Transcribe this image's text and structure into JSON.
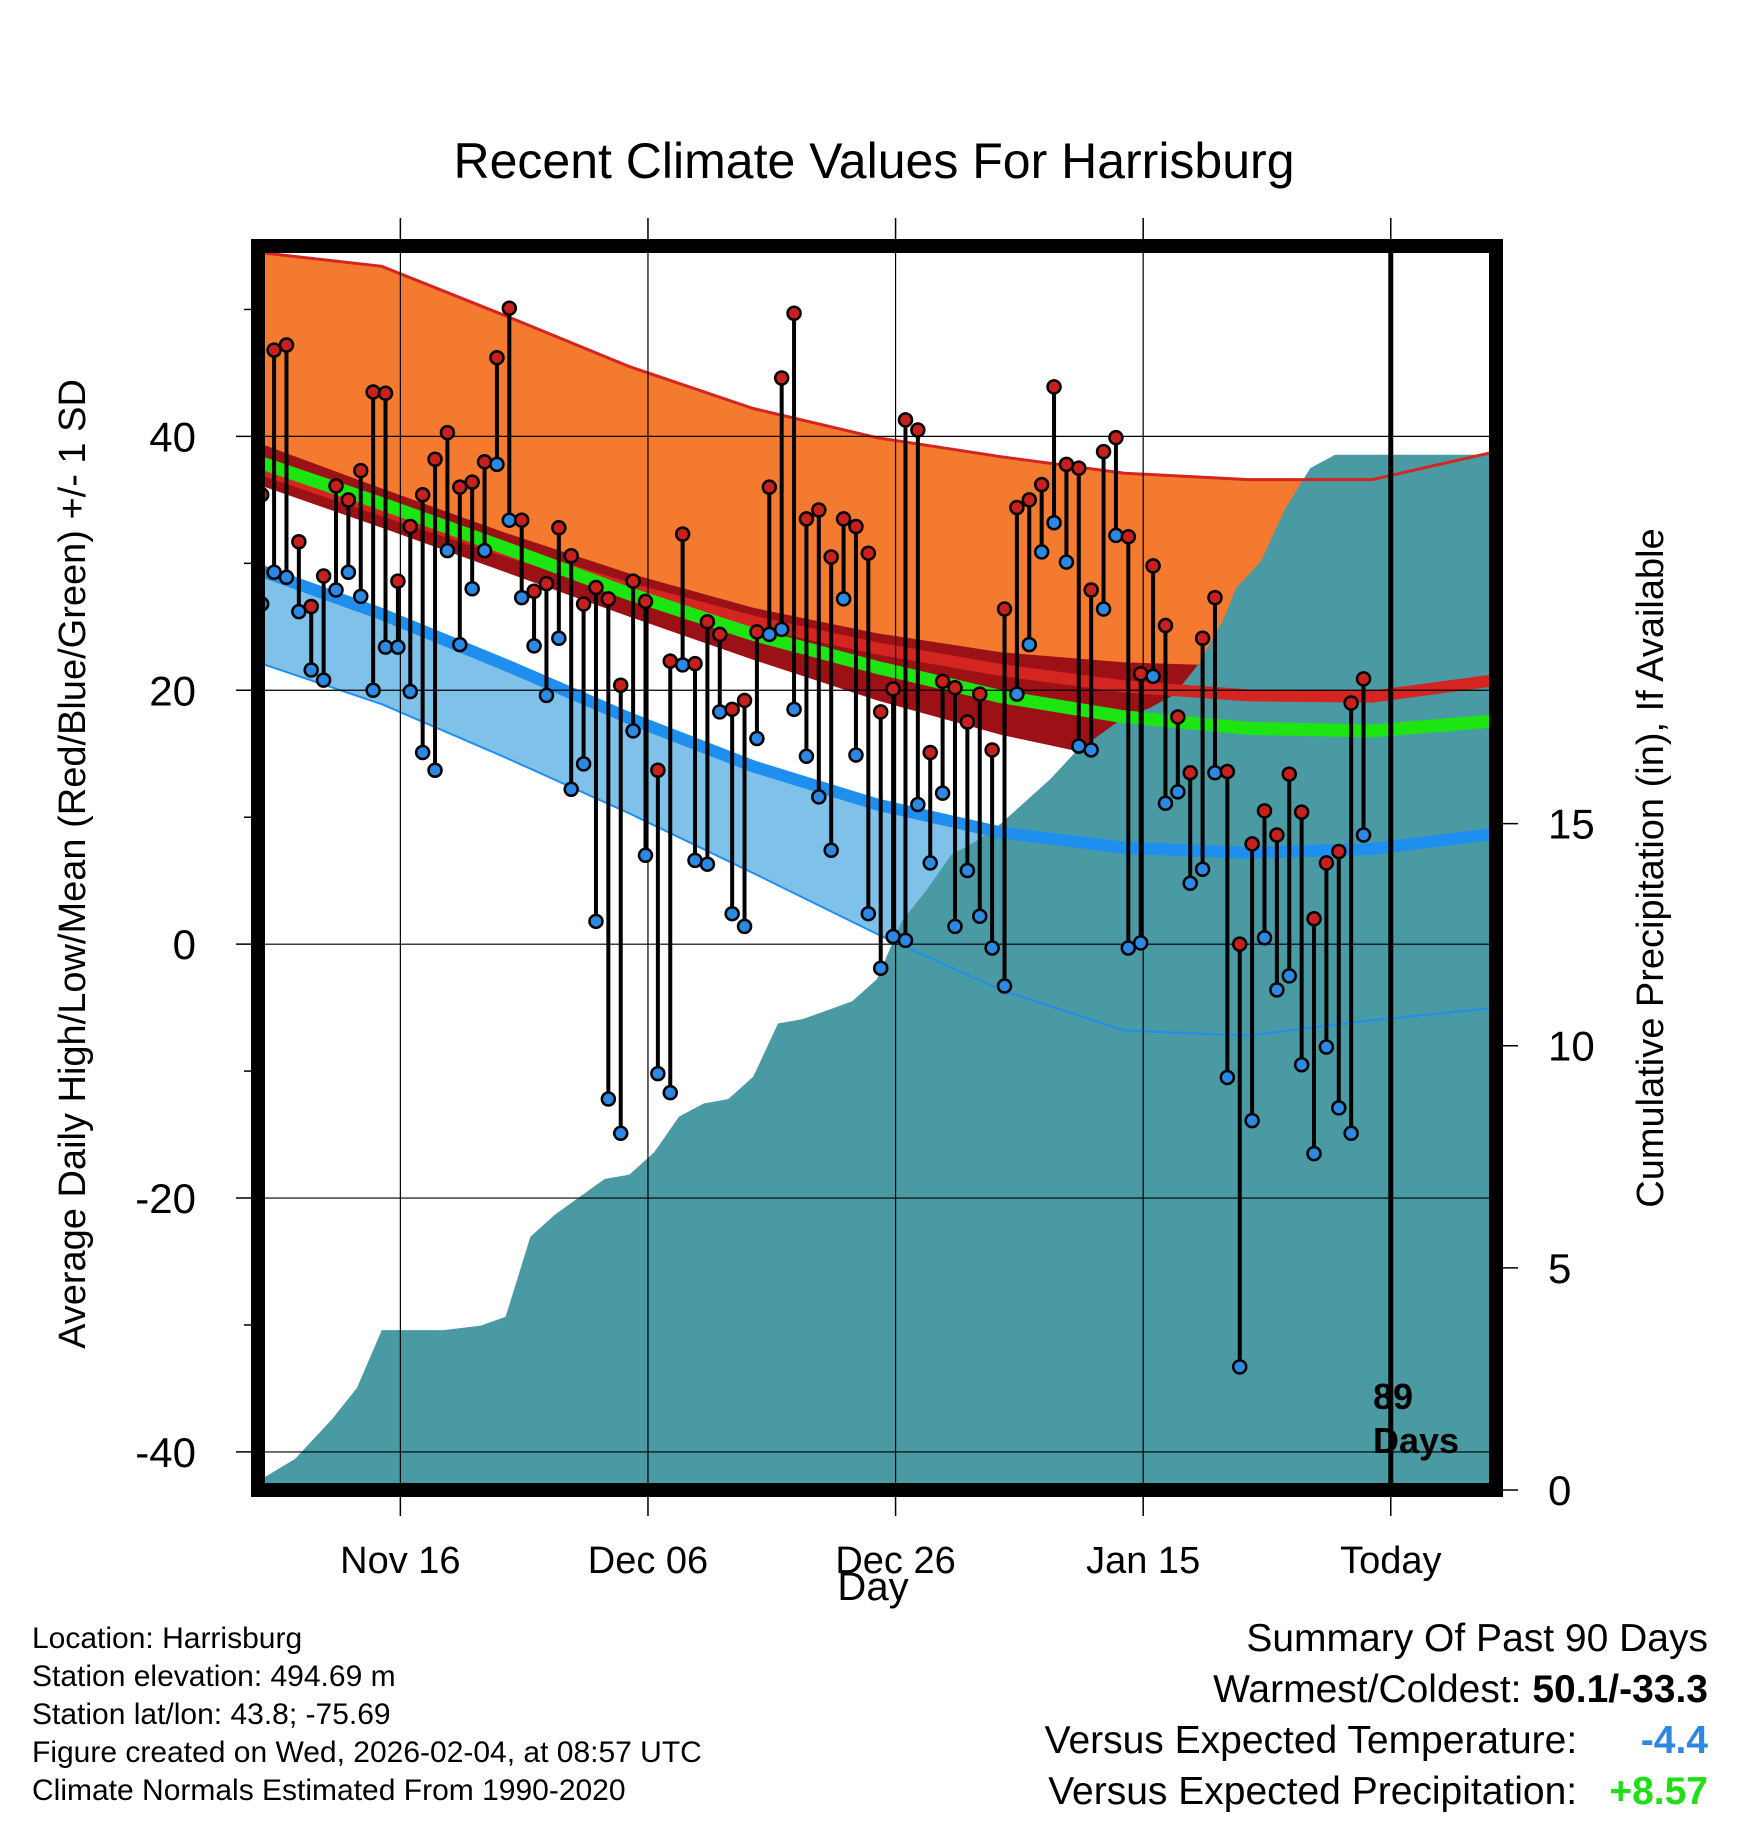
{
  "chart_data": {
    "type": "line",
    "title": "Recent Climate Values For Harrisburg",
    "xlabel": "Day",
    "ylabel": "Average Daily High/Low/Mean (Red/Blue/Green) +/- 1 SD",
    "y2label": "Cumulative Precipitation (in), If Available",
    "ylim": [
      -43,
      55
    ],
    "y2lim": [
      0,
      28
    ],
    "yticks": [
      "40",
      "20",
      "0",
      "-20",
      "-40"
    ],
    "y2ticks": [
      "15",
      "10",
      "5",
      "0"
    ],
    "xlim": [
      0,
      100
    ],
    "xticks": [
      {
        "day": 11.5,
        "label": "Nov 16"
      },
      {
        "day": 31.5,
        "label": "Dec 06"
      },
      {
        "day": 51.5,
        "label": "Dec 26"
      },
      {
        "day": 71.5,
        "label": "Jan 15"
      },
      {
        "day": 91.5,
        "label": "Today"
      }
    ],
    "today_day": 91.5,
    "days_label_1": "89",
    "days_label_2": "Days",
    "normal_keys": [
      0,
      10,
      20,
      30,
      40,
      50,
      60,
      70,
      80,
      90,
      100
    ],
    "normal_high": [
      37.5,
      34.2,
      31.0,
      28.0,
      25.4,
      23.3,
      21.6,
      20.3,
      19.6,
      19.5,
      20.8
    ],
    "normal_high_upper": [
      54.5,
      53.4,
      49.5,
      45.5,
      42.2,
      39.9,
      38.4,
      37.1,
      36.6,
      36.6,
      38.8
    ],
    "normal_low": [
      29.5,
      26.0,
      22.0,
      17.8,
      14.0,
      11.0,
      8.8,
      7.6,
      7.2,
      7.5,
      8.7
    ],
    "normal_low_lower": [
      22.2,
      18.9,
      14.7,
      10.3,
      5.6,
      0.8,
      -3.6,
      -6.8,
      -7.2,
      -6.0,
      -5.0
    ],
    "normal_mean": [
      38.0,
      34.7,
      31.2,
      27.6,
      24.4,
      21.8,
      19.5,
      17.9,
      17.0,
      16.8,
      17.6
    ],
    "normal_mean_upper": [
      39.5,
      35.9,
      32.4,
      29.2,
      26.5,
      24.5,
      23.0,
      22.2,
      21.9,
      21.9,
      22.6
    ],
    "normal_mean_lower": [
      36.2,
      32.8,
      29.3,
      25.8,
      22.4,
      19.2,
      16.5,
      14.4,
      13.6,
      14.3,
      16.8
    ],
    "precip_cum_days": [
      0,
      3,
      6,
      8,
      10,
      12,
      15,
      18,
      20,
      22,
      24,
      26,
      28,
      30,
      32,
      34,
      36,
      38,
      40,
      42,
      44,
      46,
      48,
      50,
      52,
      54,
      56,
      58,
      60,
      62,
      64,
      66,
      68,
      70,
      72,
      74,
      76,
      78,
      79,
      81,
      83,
      85,
      87,
      88,
      89,
      100
    ],
    "precip_cum_values": [
      0.2,
      0.7,
      1.6,
      2.3,
      3.6,
      3.6,
      3.6,
      3.7,
      3.9,
      5.7,
      6.2,
      6.6,
      7.0,
      7.1,
      7.6,
      8.4,
      8.7,
      8.8,
      9.3,
      10.5,
      10.6,
      10.8,
      11.0,
      11.5,
      12.8,
      13.5,
      14.3,
      14.6,
      15.0,
      15.5,
      16.0,
      16.6,
      17.0,
      17.4,
      17.6,
      17.9,
      18.6,
      19.6,
      20.3,
      20.9,
      22.1,
      23.0,
      23.3,
      23.3,
      23.3,
      23.3
    ],
    "days": [
      0.3,
      1.3,
      2.3,
      3.3,
      4.3,
      5.3,
      6.3,
      7.3,
      8.3,
      9.3,
      10.3,
      11.3,
      12.3,
      13.3,
      14.3,
      15.3,
      16.3,
      17.3,
      18.3,
      19.3,
      20.3,
      21.3,
      22.3,
      23.3,
      24.3,
      25.3,
      26.3,
      27.3,
      28.3,
      29.3,
      30.3,
      31.3,
      32.3,
      33.3,
      34.3,
      35.3,
      36.3,
      37.3,
      38.3,
      39.3,
      40.3,
      41.3,
      42.3,
      43.3,
      44.3,
      45.3,
      46.3,
      47.3,
      48.3,
      49.3,
      50.3,
      51.3,
      52.3,
      53.3,
      54.3,
      55.3,
      56.3,
      57.3,
      58.3,
      59.3,
      60.3,
      61.3,
      62.3,
      63.3,
      64.3,
      65.3,
      66.3,
      67.3,
      68.3,
      69.3,
      70.3,
      71.3,
      72.3,
      73.3,
      74.3,
      75.3,
      76.3,
      77.3,
      78.3,
      79.3,
      80.3,
      81.3,
      82.3,
      83.3,
      84.3,
      85.3,
      86.3,
      87.3,
      88.3,
      89.3,
      90.3
    ],
    "highs": [
      35.4,
      46.8,
      47.2,
      31.7,
      26.6,
      29.0,
      36.1,
      35.0,
      37.3,
      43.5,
      43.4,
      28.6,
      32.9,
      35.4,
      38.2,
      40.3,
      36.0,
      36.4,
      38.0,
      46.2,
      50.1,
      33.4,
      27.8,
      28.4,
      32.8,
      30.6,
      26.8,
      28.1,
      27.2,
      20.4,
      28.6,
      27.0,
      13.7,
      22.3,
      32.3,
      22.1,
      25.4,
      24.4,
      18.5,
      19.2,
      24.6,
      36.0,
      44.6,
      49.7,
      33.5,
      34.2,
      30.5,
      33.5,
      32.9,
      30.8,
      18.3,
      20.1,
      41.3,
      40.5,
      15.1,
      20.7,
      20.2,
      17.5,
      19.7,
      15.3,
      26.4,
      34.4,
      35.0,
      36.2,
      43.9,
      37.8,
      37.5,
      27.9,
      38.8,
      39.9,
      32.1,
      21.3,
      29.8,
      25.1,
      17.9,
      13.5,
      24.1,
      27.3,
      13.6,
      0.0,
      7.9,
      10.5,
      8.6,
      13.4,
      10.4,
      2.0,
      6.4,
      7.3,
      19.0,
      20.9
    ],
    "lows": [
      26.8,
      29.3,
      28.9,
      26.2,
      21.6,
      20.8,
      27.9,
      29.3,
      27.4,
      20.0,
      23.4,
      23.4,
      19.9,
      15.1,
      13.7,
      31.0,
      23.6,
      28.0,
      31.0,
      37.8,
      33.4,
      27.3,
      23.5,
      19.6,
      24.1,
      12.2,
      14.2,
      1.8,
      -12.2,
      -14.9,
      16.8,
      7.0,
      -10.2,
      -11.7,
      22.0,
      6.6,
      6.3,
      18.3,
      2.4,
      1.4,
      16.2,
      24.4,
      24.8,
      18.5,
      14.8,
      11.6,
      7.4,
      27.2,
      14.9,
      2.4,
      -1.9,
      0.6,
      0.3,
      11.0,
      6.4,
      11.9,
      1.4,
      5.8,
      2.2,
      -0.3,
      -3.3,
      19.7,
      23.6,
      30.9,
      33.2,
      30.1,
      15.6,
      15.3,
      26.4,
      32.2,
      -0.3,
      0.1,
      21.1,
      11.1,
      12.0,
      4.8,
      5.9,
      13.5,
      -10.5,
      -33.3,
      -13.9,
      0.5,
      -3.6,
      -2.5,
      -9.5,
      -16.5,
      -8.1,
      -12.9,
      -14.9,
      8.6
    ],
    "colors": {
      "high_band": "#f47a2f",
      "high_line": "#d42520",
      "mean_band": "#9b1115",
      "mean_line": "#1de511",
      "low_band": "#7fc1e8",
      "low_line": "#1e8fef",
      "precip": "#4a9aa4",
      "high_dot": "#c8201c",
      "low_dot": "#2b88e3",
      "negative": "#2b88e3",
      "positive": "#1fe014"
    }
  },
  "info": {
    "location": "Location: Harrisburg",
    "elevation": "Station elevation: 494.69 m",
    "latlon": "Station lat/lon: 43.8; -75.69",
    "created": "Figure created on Wed, 2026-02-04, at 08:57 UTC",
    "normals": "Climate Normals Estimated From 1990-2020"
  },
  "summary": {
    "title": "Summary Of Past 90 Days",
    "warmest_label": "Warmest/Coldest: ",
    "warmest_value": "50.1/-33.3",
    "temp_label": "Versus Expected Temperature:",
    "temp_value": "-4.4",
    "precip_label": "Versus Expected Precipitation:",
    "precip_value": "+8.57"
  }
}
